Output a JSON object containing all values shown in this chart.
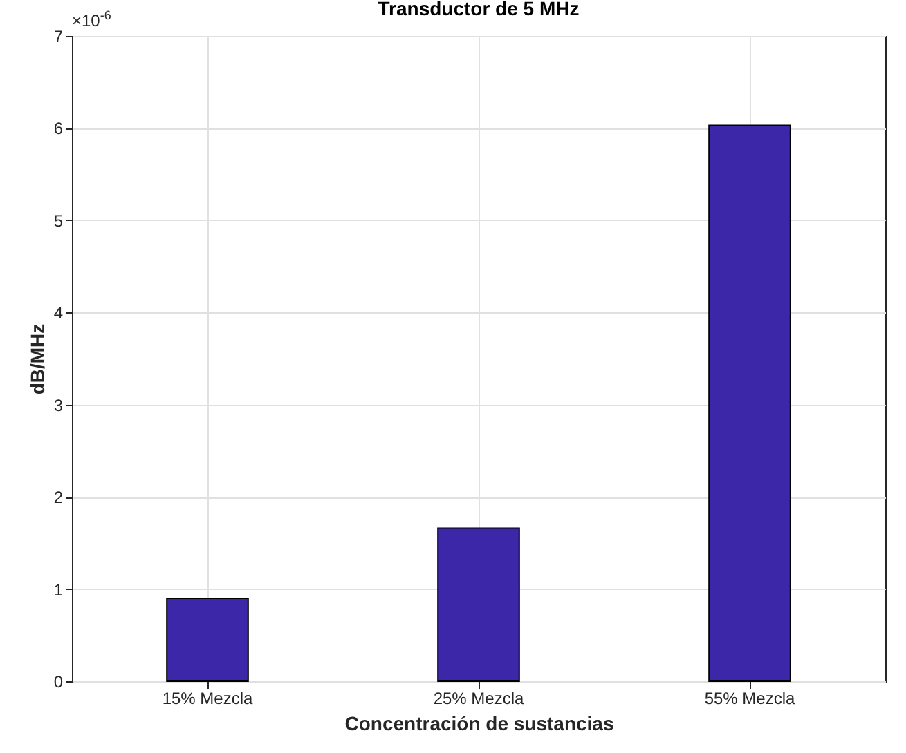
{
  "chart_data": {
    "type": "bar",
    "title": "Transductor de 5 MHz",
    "xlabel": "Concentración de sustancias",
    "ylabel": "dB/MHz",
    "annotations": [
      "×10$^{-6}$"
    ],
    "categories": [
      "15% Mezcla",
      "25% Mezcla",
      "55% Mezcla"
    ],
    "values": [
      0.9,
      1.66,
      6.03
    ],
    "color": "#3b27a7",
    "ylim": [
      0,
      7
    ],
    "yticks": [
      0,
      1,
      2,
      3,
      4,
      5,
      6,
      7
    ],
    "grid": true
  }
}
